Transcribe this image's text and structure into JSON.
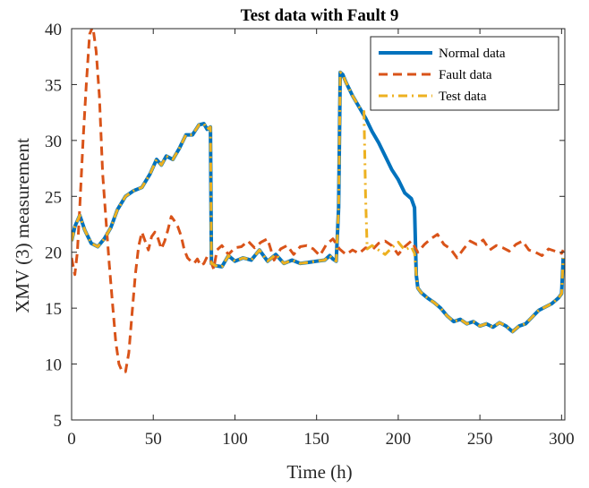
{
  "chart_data": {
    "type": "line",
    "title": "Test data with Fault 9",
    "xlabel": "Time (h)",
    "ylabel": "XMV (3) measurement",
    "xlim": [
      0,
      302
    ],
    "ylim": [
      5,
      40
    ],
    "xticks": [
      0,
      50,
      100,
      150,
      200,
      250,
      300
    ],
    "yticks": [
      5,
      10,
      15,
      20,
      25,
      30,
      35,
      40
    ],
    "grid": false,
    "legend_position": "top-right",
    "series": [
      {
        "name": "Normal data",
        "color": "#0072BD",
        "style": "solid",
        "x": [
          0,
          2,
          5,
          8,
          12,
          16,
          20,
          24,
          28,
          33,
          38,
          43,
          48,
          52,
          55,
          58,
          62,
          66,
          70,
          74,
          78,
          81,
          83,
          85,
          85.6,
          86,
          88,
          92,
          96,
          100,
          105,
          110,
          115,
          120,
          125,
          130,
          135,
          140,
          145,
          150,
          155,
          158,
          160,
          162,
          163.5,
          164.5,
          166,
          168,
          172,
          176,
          180,
          184,
          188,
          192,
          196,
          200,
          204,
          208,
          210,
          211,
          212,
          214,
          218,
          222,
          226,
          230,
          234,
          238,
          242,
          246,
          250,
          254,
          258,
          262,
          266,
          270,
          274,
          278,
          282,
          286,
          290,
          294,
          298,
          300,
          301
        ],
        "y": [
          21,
          22.3,
          23.3,
          22,
          20.8,
          20.5,
          21.2,
          22.2,
          23.8,
          25,
          25.5,
          25.8,
          27,
          28.3,
          27.8,
          28.6,
          28.3,
          29.3,
          30.5,
          30.5,
          31.4,
          31.5,
          31,
          31.2,
          19,
          19,
          18.8,
          18.7,
          19.7,
          19.2,
          19.5,
          19.3,
          20.2,
          19.2,
          19.8,
          19,
          19.3,
          19,
          19.1,
          19.2,
          19.3,
          19.7,
          19.4,
          19.2,
          24,
          36.1,
          35.9,
          35.2,
          34,
          33,
          32,
          30.8,
          29.8,
          28.6,
          27.4,
          26.5,
          25.3,
          24.8,
          24,
          18,
          16.8,
          16.4,
          15.9,
          15.5,
          15,
          14.3,
          13.8,
          14,
          13.6,
          13.8,
          13.4,
          13.6,
          13.3,
          13.7,
          13.4,
          12.9,
          13.4,
          13.6,
          14.2,
          14.8,
          15.1,
          15.4,
          15.9,
          16.3,
          19.5
        ]
      },
      {
        "name": "Fault data",
        "color": "#D95319",
        "style": "dashed",
        "x": [
          0,
          2,
          3.5,
          5,
          7,
          9,
          11,
          13,
          15,
          17,
          19,
          21,
          23,
          25,
          27,
          29,
          31,
          33,
          35,
          37,
          39,
          41,
          43,
          45,
          47,
          49,
          51,
          53,
          55,
          57,
          59,
          61,
          63,
          65,
          67,
          69,
          71,
          73,
          75,
          77,
          79,
          81,
          83,
          85,
          87,
          89,
          92,
          96,
          100,
          104,
          108,
          112,
          116,
          120,
          124,
          128,
          132,
          136,
          140,
          144,
          148,
          152,
          156,
          160,
          164,
          168,
          172,
          176,
          180,
          184,
          188,
          192,
          196,
          200,
          204,
          208,
          212,
          216,
          220,
          224,
          228,
          232,
          236,
          240,
          244,
          248,
          252,
          256,
          260,
          264,
          268,
          272,
          276,
          280,
          284,
          288,
          292,
          296,
          300,
          301
        ],
        "y": [
          19.5,
          18,
          20,
          24,
          30,
          35,
          39.5,
          40.2,
          38,
          34,
          27,
          23,
          19,
          15.5,
          12,
          10,
          9.3,
          9.3,
          11,
          14.5,
          18,
          20.5,
          21.8,
          21,
          20.2,
          21.4,
          21.8,
          21.2,
          20.3,
          21,
          22,
          23.2,
          22.8,
          22.3,
          21.5,
          20.2,
          19.5,
          19.2,
          19,
          19.4,
          18.8,
          19,
          19.6,
          19.3,
          18.5,
          20.2,
          20.6,
          19.8,
          20.4,
          20.5,
          21,
          20.4,
          20.9,
          21.2,
          19.3,
          20.3,
          20.6,
          19.8,
          20.5,
          20.6,
          20.3,
          19.7,
          20.7,
          21.2,
          20.3,
          19.8,
          20.2,
          19.9,
          20.4,
          20.2,
          20.8,
          21,
          20.6,
          19.8,
          20.5,
          21,
          20,
          20.7,
          21.2,
          21.6,
          20.7,
          20.3,
          19.5,
          20.3,
          21,
          20.7,
          21.1,
          20.2,
          20.6,
          20.4,
          20.1,
          20.7,
          21,
          20.2,
          20,
          19.7,
          20.3,
          20.1,
          19.9,
          20.2
        ]
      },
      {
        "name": "Test data",
        "color": "#EDB120",
        "style": "dashdot",
        "x": [
          0,
          2,
          5,
          8,
          12,
          16,
          20,
          24,
          28,
          33,
          38,
          43,
          48,
          52,
          55,
          58,
          62,
          66,
          70,
          74,
          78,
          81,
          83,
          85,
          85.6,
          86,
          88,
          92,
          96,
          100,
          105,
          110,
          115,
          120,
          125,
          130,
          135,
          140,
          145,
          150,
          155,
          158,
          160,
          162,
          163.5,
          164.5,
          166,
          168,
          172,
          176,
          179,
          180,
          181,
          184,
          188,
          192,
          196,
          200,
          204,
          208,
          210,
          211,
          212,
          214,
          218,
          222,
          226,
          230,
          234,
          238,
          242,
          246,
          250,
          254,
          258,
          262,
          266,
          270,
          274,
          278,
          282,
          286,
          290,
          294,
          298,
          300,
          301
        ],
        "y": [
          21,
          22.3,
          23.3,
          22,
          20.8,
          20.5,
          21.2,
          22.2,
          23.8,
          25,
          25.5,
          25.8,
          27,
          28.3,
          27.8,
          28.6,
          28.3,
          29.3,
          30.5,
          30.5,
          31.4,
          31.5,
          31,
          31.2,
          19,
          19,
          18.8,
          18.7,
          19.7,
          19.2,
          19.5,
          19.3,
          20.2,
          19.2,
          19.8,
          19,
          19.3,
          19,
          19.1,
          19.2,
          19.3,
          19.7,
          19.4,
          19.2,
          24,
          36.1,
          35.9,
          35.2,
          34,
          33,
          32.6,
          25,
          20.3,
          20.6,
          20.2,
          19.8,
          20.4,
          20.9,
          20.2,
          20.5,
          19.9,
          18,
          16.8,
          16.4,
          15.9,
          15.5,
          15,
          14.3,
          13.8,
          14,
          13.6,
          13.8,
          13.4,
          13.6,
          13.3,
          13.7,
          13.4,
          12.9,
          13.4,
          13.6,
          14.2,
          14.8,
          15.1,
          15.4,
          15.9,
          16.3,
          19.5
        ]
      }
    ]
  }
}
